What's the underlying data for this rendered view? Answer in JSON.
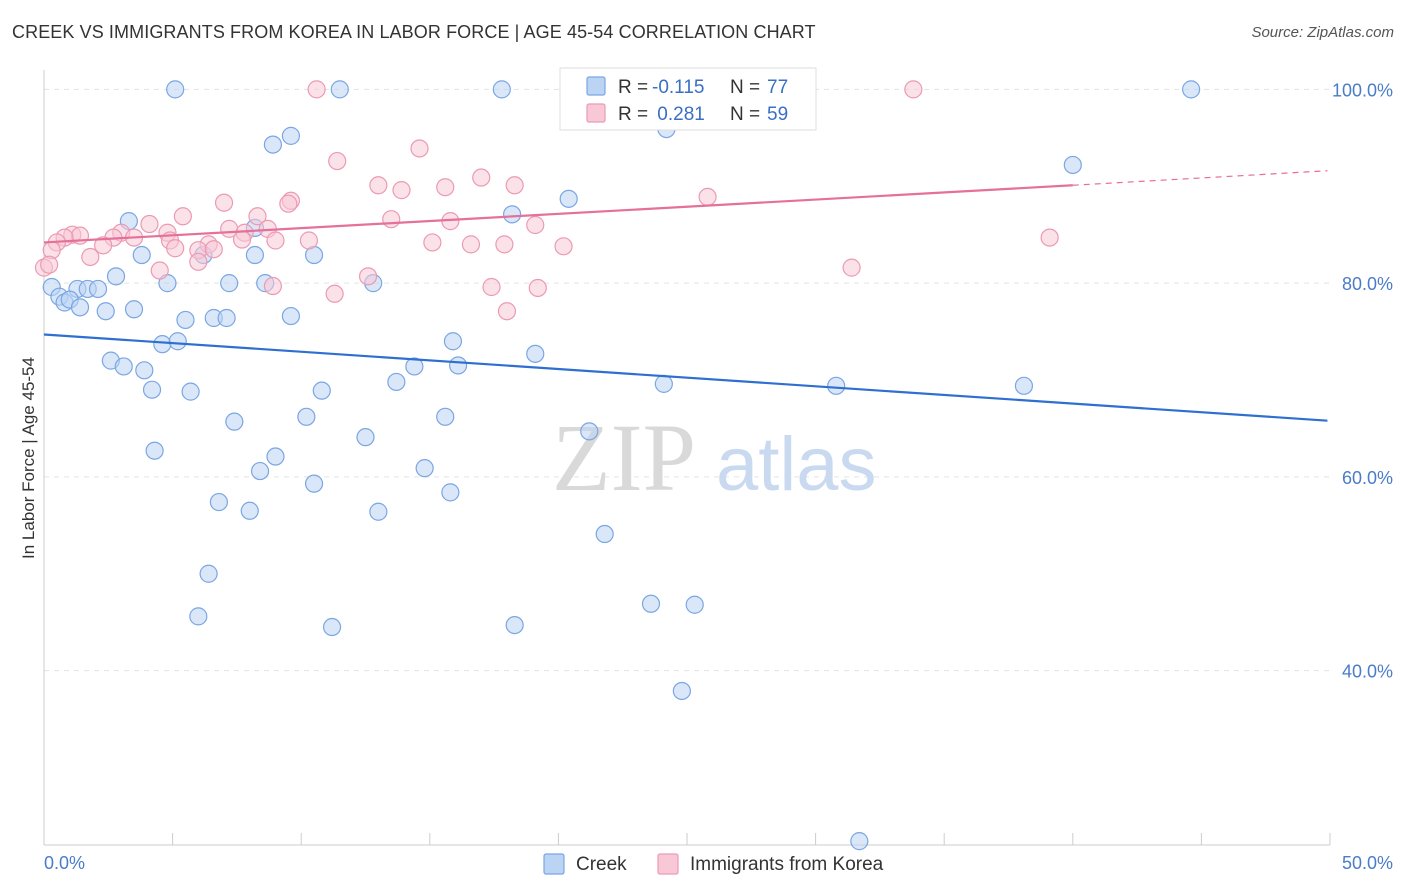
{
  "title": "CREEK VS IMMIGRANTS FROM KOREA IN LABOR FORCE | AGE 45-54 CORRELATION CHART",
  "source": "Source: ZipAtlas.com",
  "watermark": {
    "zip": "ZIP",
    "atlas": "atlas"
  },
  "colors": {
    "creek_fill": "#bcd4f4",
    "creek_stroke": "#7aa6e3",
    "creek_line": "#2e6fd0",
    "korea_fill": "#f8c8d6",
    "korea_stroke": "#ec9ab3",
    "korea_line": "#e5709a",
    "grid": "#e3e3e3",
    "axis_label": "#4a7cc9"
  },
  "legend_box": {
    "rows": [
      {
        "r_label": "R = ",
        "r_value": "-0.115",
        "n_label": "N = ",
        "n_value": "77"
      },
      {
        "r_label": "R = ",
        "r_value": " 0.281",
        "n_label": "N = ",
        "n_value": "59"
      }
    ]
  },
  "chart_data": {
    "type": "scatter",
    "title": "CREEK VS IMMIGRANTS FROM KOREA IN LABOR FORCE | AGE 45-54 CORRELATION CHART",
    "xlabel": "",
    "ylabel": "In Labor Force | Age 45-54",
    "xlim": [
      0,
      50
    ],
    "ylim": [
      22,
      102
    ],
    "x_tick_labels": [
      "0.0%",
      "50.0%"
    ],
    "y_ticks": [
      40,
      60,
      80,
      100
    ],
    "y_tick_labels": [
      "40.0%",
      "60.0%",
      "80.0%",
      "100.0%"
    ],
    "grid": true,
    "legend_position": "bottom",
    "series": [
      {
        "name": "Creek",
        "r": -0.115,
        "n": 77,
        "trend": {
          "x": [
            0,
            49.9
          ],
          "y": [
            74.7,
            65.8
          ]
        },
        "points": [
          [
            5.1,
            100
          ],
          [
            11.5,
            100
          ],
          [
            17.8,
            100
          ],
          [
            44.6,
            100
          ],
          [
            24.2,
            95.9
          ],
          [
            9.6,
            95.2
          ],
          [
            8.9,
            94.3
          ],
          [
            40.0,
            92.2
          ],
          [
            20.4,
            88.7
          ],
          [
            18.2,
            87.1
          ],
          [
            3.3,
            86.4
          ],
          [
            8.2,
            85.7
          ],
          [
            3.8,
            82.9
          ],
          [
            6.2,
            82.9
          ],
          [
            8.2,
            82.9
          ],
          [
            10.5,
            82.9
          ],
          [
            2.8,
            80.7
          ],
          [
            4.8,
            80.0
          ],
          [
            7.2,
            80.0
          ],
          [
            8.6,
            80.0
          ],
          [
            12.8,
            80.0
          ],
          [
            0.3,
            79.6
          ],
          [
            1.3,
            79.4
          ],
          [
            1.7,
            79.4
          ],
          [
            2.1,
            79.4
          ],
          [
            0.6,
            78.6
          ],
          [
            0.8,
            78.0
          ],
          [
            1.0,
            78.3
          ],
          [
            1.4,
            77.5
          ],
          [
            2.4,
            77.1
          ],
          [
            3.5,
            77.3
          ],
          [
            5.5,
            76.2
          ],
          [
            6.6,
            76.4
          ],
          [
            7.1,
            76.4
          ],
          [
            9.6,
            76.6
          ],
          [
            4.6,
            73.7
          ],
          [
            5.2,
            74.0
          ],
          [
            15.9,
            74.0
          ],
          [
            19.1,
            72.7
          ],
          [
            2.6,
            72.0
          ],
          [
            3.1,
            71.4
          ],
          [
            3.9,
            71.0
          ],
          [
            14.4,
            71.4
          ],
          [
            16.1,
            71.5
          ],
          [
            13.7,
            69.8
          ],
          [
            4.2,
            69.0
          ],
          [
            5.7,
            68.8
          ],
          [
            10.8,
            68.9
          ],
          [
            24.1,
            69.6
          ],
          [
            30.8,
            69.4
          ],
          [
            38.1,
            69.4
          ],
          [
            7.4,
            65.7
          ],
          [
            10.2,
            66.2
          ],
          [
            15.6,
            66.2
          ],
          [
            12.5,
            64.1
          ],
          [
            21.2,
            64.7
          ],
          [
            4.3,
            62.7
          ],
          [
            9.0,
            62.1
          ],
          [
            14.8,
            60.9
          ],
          [
            8.4,
            60.6
          ],
          [
            10.5,
            59.3
          ],
          [
            15.8,
            58.4
          ],
          [
            6.8,
            57.4
          ],
          [
            8.0,
            56.5
          ],
          [
            13.0,
            56.4
          ],
          [
            21.8,
            54.1
          ],
          [
            6.4,
            50.0
          ],
          [
            6.0,
            45.6
          ],
          [
            11.2,
            44.5
          ],
          [
            18.3,
            44.7
          ],
          [
            23.6,
            46.9
          ],
          [
            25.3,
            46.8
          ],
          [
            24.8,
            37.9
          ],
          [
            31.7,
            22.4
          ]
        ]
      },
      {
        "name": "Immigrants from Korea",
        "r": 0.281,
        "n": 59,
        "trend": {
          "x": [
            0,
            40.0,
            49.9
          ],
          "y": [
            84.2,
            90.1,
            91.6
          ]
        },
        "trend_dashed_from": 40.0,
        "points": [
          [
            10.6,
            100
          ],
          [
            33.8,
            100
          ],
          [
            11.4,
            92.6
          ],
          [
            14.6,
            93.9
          ],
          [
            17.0,
            90.9
          ],
          [
            13.0,
            90.1
          ],
          [
            15.6,
            89.9
          ],
          [
            18.3,
            90.1
          ],
          [
            13.9,
            89.6
          ],
          [
            9.6,
            88.5
          ],
          [
            9.5,
            88.2
          ],
          [
            25.8,
            88.9
          ],
          [
            7.0,
            88.3
          ],
          [
            5.4,
            86.9
          ],
          [
            8.3,
            86.9
          ],
          [
            13.5,
            86.6
          ],
          [
            15.8,
            86.4
          ],
          [
            19.1,
            86.0
          ],
          [
            4.1,
            86.1
          ],
          [
            7.2,
            85.6
          ],
          [
            8.7,
            85.6
          ],
          [
            3.0,
            85.2
          ],
          [
            4.8,
            85.2
          ],
          [
            7.8,
            85.2
          ],
          [
            1.1,
            85.0
          ],
          [
            1.4,
            84.9
          ],
          [
            2.7,
            84.7
          ],
          [
            3.5,
            84.7
          ],
          [
            4.9,
            84.4
          ],
          [
            7.7,
            84.5
          ],
          [
            9.0,
            84.4
          ],
          [
            10.3,
            84.4
          ],
          [
            15.1,
            84.2
          ],
          [
            16.6,
            84.0
          ],
          [
            17.9,
            84.0
          ],
          [
            20.2,
            83.8
          ],
          [
            6.4,
            84.0
          ],
          [
            0.8,
            84.7
          ],
          [
            0.5,
            84.2
          ],
          [
            2.3,
            83.9
          ],
          [
            5.1,
            83.6
          ],
          [
            6.0,
            83.4
          ],
          [
            6.6,
            83.5
          ],
          [
            0.3,
            83.4
          ],
          [
            1.8,
            82.7
          ],
          [
            6.0,
            82.2
          ],
          [
            4.5,
            81.3
          ],
          [
            31.4,
            81.6
          ],
          [
            12.6,
            80.7
          ],
          [
            8.9,
            79.7
          ],
          [
            19.2,
            79.5
          ],
          [
            17.4,
            79.6
          ],
          [
            11.3,
            78.9
          ],
          [
            18.0,
            77.1
          ],
          [
            39.1,
            84.7
          ],
          [
            0.0,
            81.6
          ],
          [
            0.2,
            81.9
          ]
        ]
      }
    ]
  }
}
